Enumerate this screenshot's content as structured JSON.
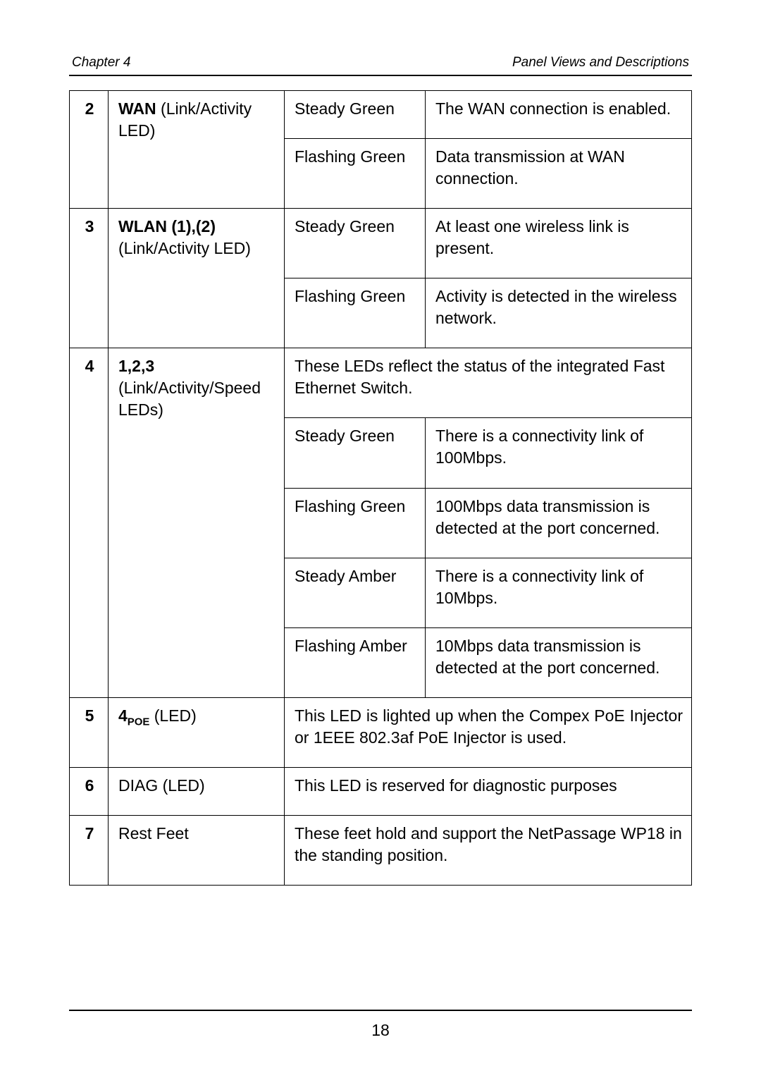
{
  "header": {
    "left": "Chapter 4",
    "right": "Panel Views and Descriptions"
  },
  "rows": {
    "r2": {
      "num": "2",
      "name_bold": "WAN",
      "name_rest": " (Link/Activity LED)",
      "a_state": "Steady Green",
      "a_desc": "The WAN connection is enabled.",
      "b_state": "Flashing Green",
      "b_desc": "Data transmission at WAN connection."
    },
    "r3": {
      "num": "3",
      "name_bold": "WLAN (1),(2)",
      "name_rest": " (Link/Activity LED)",
      "a_state": "Steady Green",
      "a_desc": "At least one wireless link is present.",
      "b_state": "Flashing Green",
      "b_desc": "Activity is detected in the wireless network."
    },
    "r4": {
      "num": "4",
      "name_bold": "1,2,3",
      "name_rest": " (Link/Activity/Speed LEDs)",
      "intro": "These LEDs reflect the status of the integrated Fast Ethernet Switch.",
      "a_state": "Steady Green",
      "a_desc": "There is a connectivity link of 100Mbps.",
      "b_state": "Flashing Green",
      "b_desc": "100Mbps data transmission is detected at the port concerned.",
      "c_state": "Steady Amber",
      "c_desc": "There is a connectivity link of 10Mbps.",
      "d_state": "Flashing Amber",
      "d_desc": "10Mbps data transmission is detected at the port concerned."
    },
    "r5": {
      "num": "5",
      "name_bold": "4",
      "name_sub": "POE",
      "name_rest": " (LED)",
      "desc": "This LED is lighted up when the Compex PoE Injector or 1EEE 802.3af PoE Injector is used."
    },
    "r6": {
      "num": "6",
      "name": "DIAG (LED)",
      "desc": "This LED is reserved for diagnostic purposes"
    },
    "r7": {
      "num": "7",
      "name": "Rest Feet",
      "desc": "These feet hold and support the NetPassage WP18 in the standing position."
    }
  },
  "page_number": "18"
}
